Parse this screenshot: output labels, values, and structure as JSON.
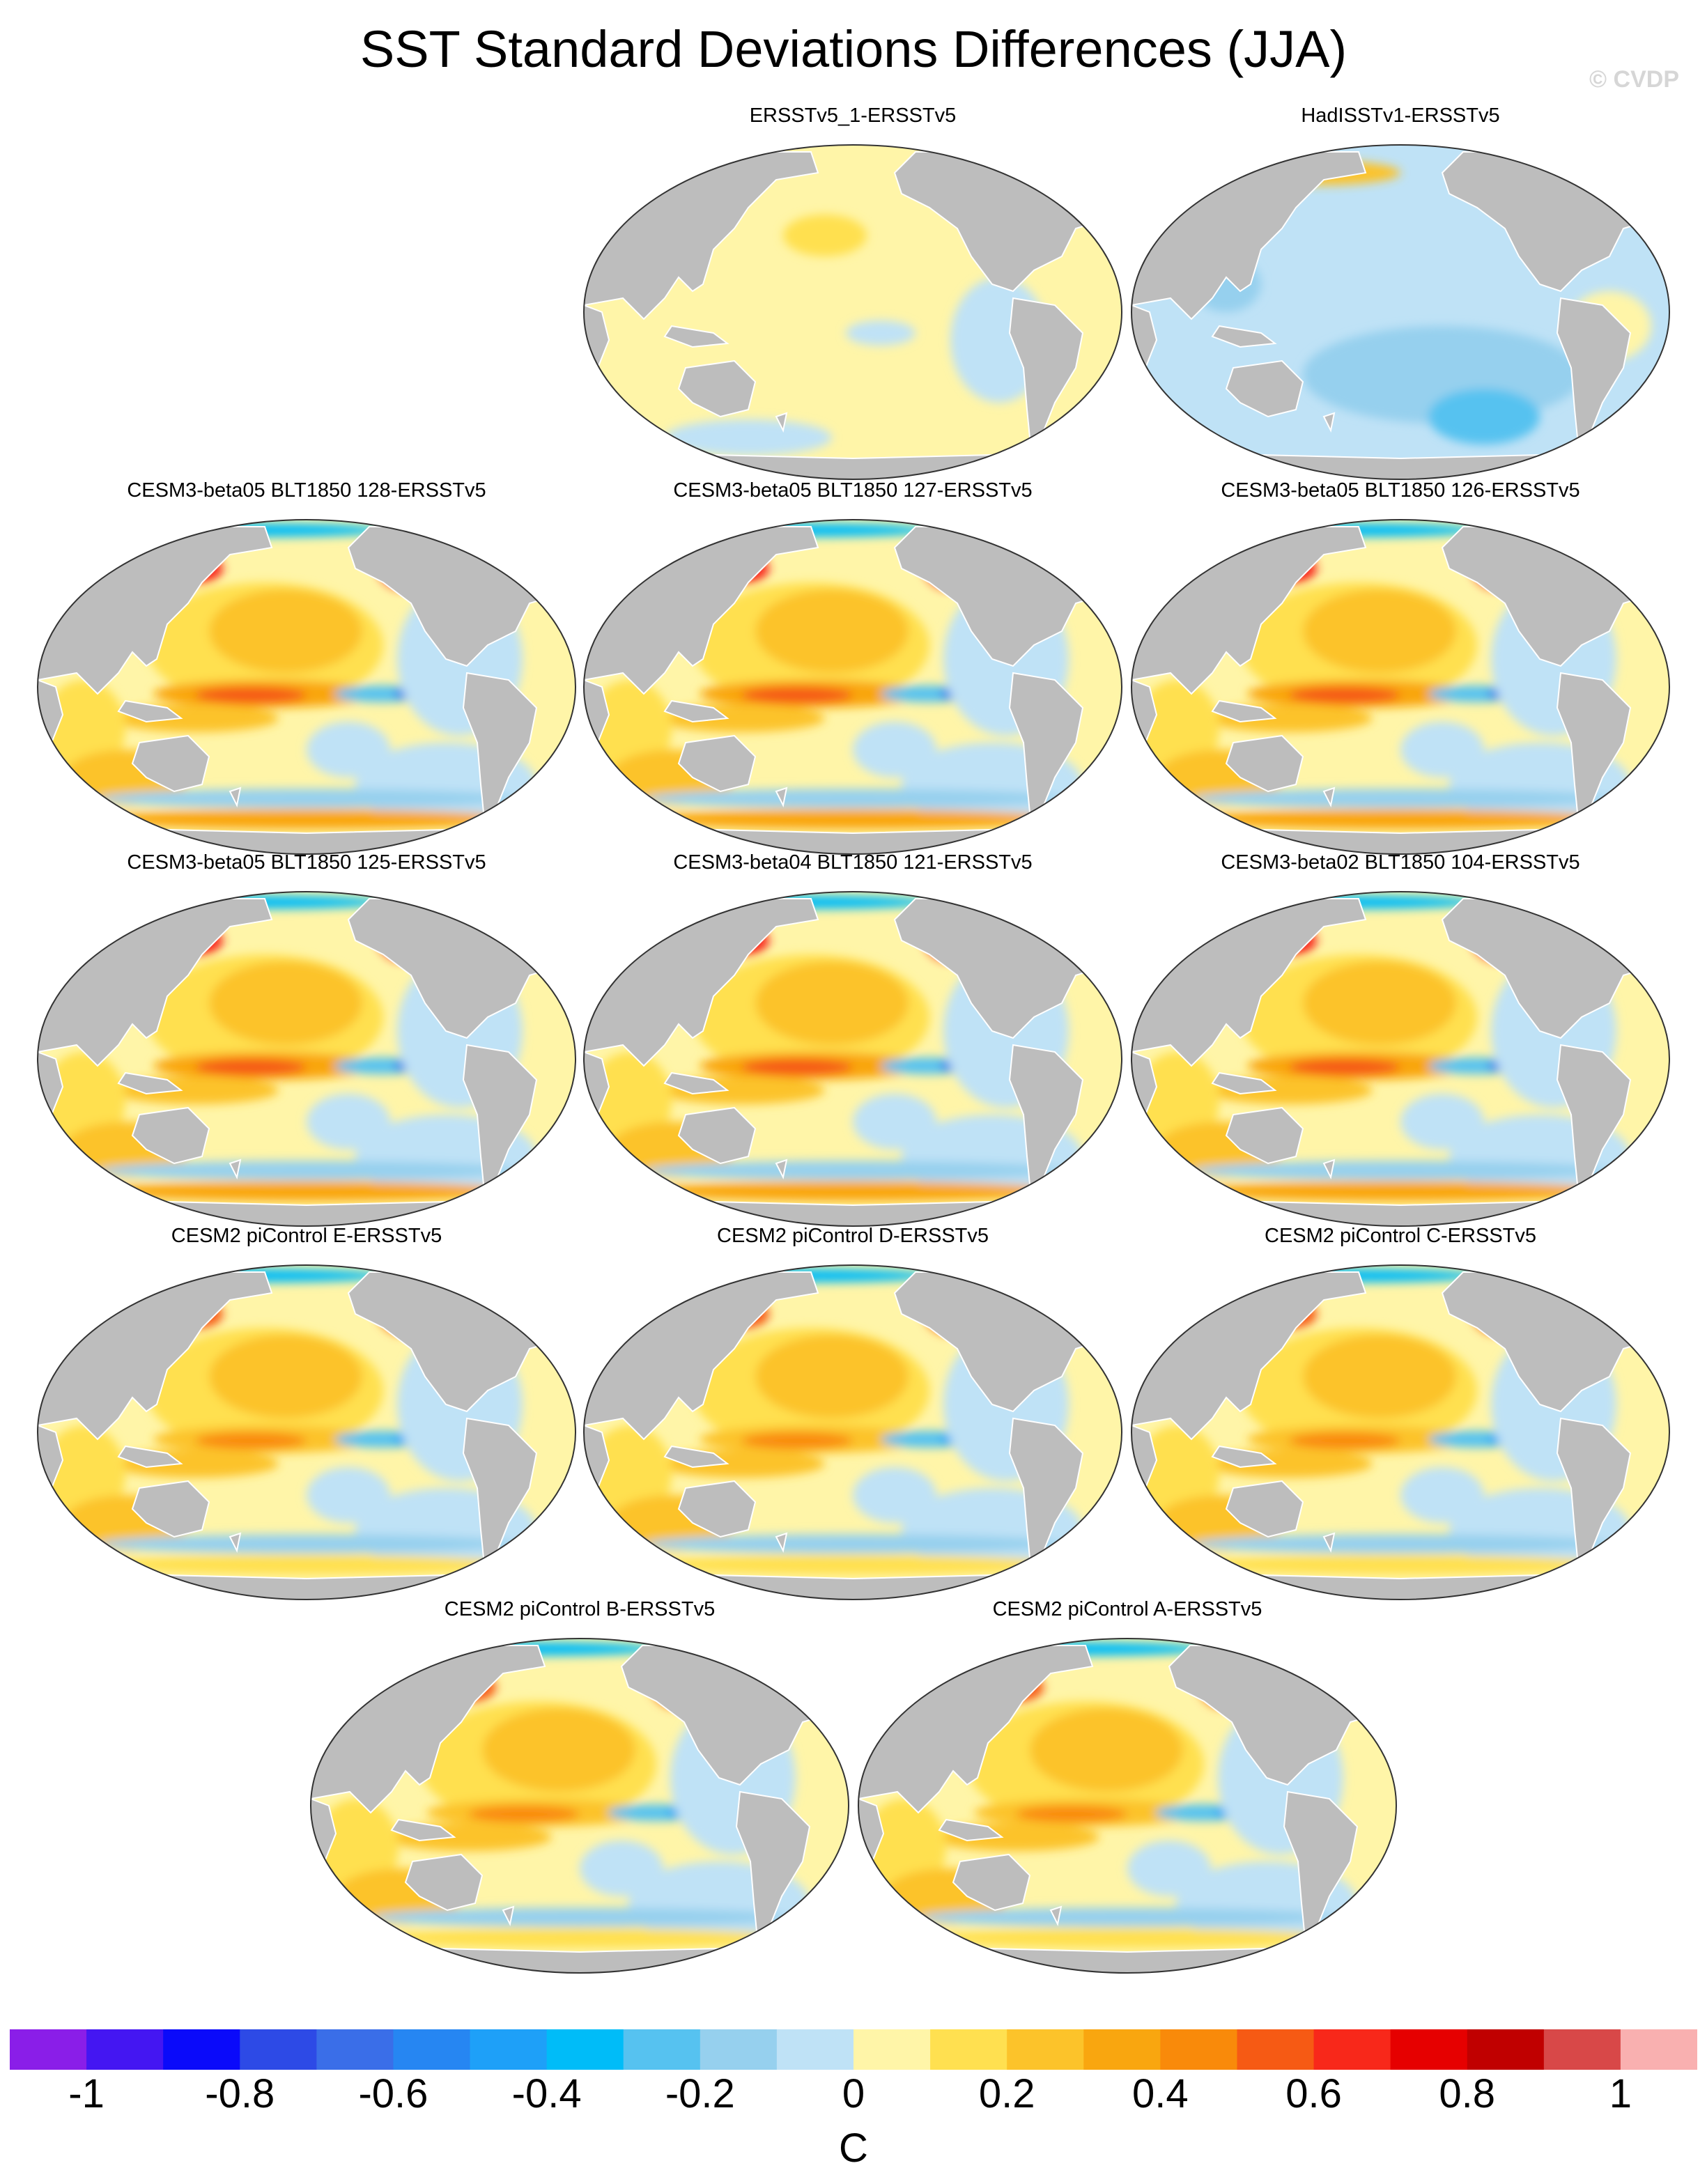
{
  "title": "SST Standard Deviations Differences (JJA)",
  "watermark": "© CVDP",
  "panels": [
    {
      "label": "ERSSTv5_1-ERSSTv5",
      "tone": "weak-positive"
    },
    {
      "label": "HadISSTv1-ERSSTv5",
      "tone": "weak-negative"
    },
    {
      "label": "CESM3-beta05 BLT1850 128-ERSSTv5",
      "tone": "strong"
    },
    {
      "label": "CESM3-beta05 BLT1850 127-ERSSTv5",
      "tone": "strong"
    },
    {
      "label": "CESM3-beta05 BLT1850 126-ERSSTv5",
      "tone": "strong"
    },
    {
      "label": "CESM3-beta05 BLT1850 125-ERSSTv5",
      "tone": "strong"
    },
    {
      "label": "CESM3-beta04 BLT1850 121-ERSSTv5",
      "tone": "strong"
    },
    {
      "label": "CESM3-beta02 BLT1850 104-ERSSTv5",
      "tone": "strong"
    },
    {
      "label": "CESM2 piControl E-ERSSTv5",
      "tone": "moderate"
    },
    {
      "label": "CESM2 piControl D-ERSSTv5",
      "tone": "moderate"
    },
    {
      "label": "CESM2 piControl C-ERSSTv5",
      "tone": "moderate"
    },
    {
      "label": "CESM2 piControl B-ERSSTv5",
      "tone": "moderate"
    },
    {
      "label": "CESM2 piControl A-ERSSTv5",
      "tone": "moderate"
    }
  ],
  "colorbar": {
    "unit": "C",
    "tick_labels": [
      "-1",
      "-0.8",
      "-0.6",
      "-0.4",
      "-0.2",
      "0",
      "0.2",
      "0.4",
      "0.6",
      "0.8",
      "1"
    ],
    "tick_values": [
      -1,
      -0.8,
      -0.6,
      -0.4,
      -0.2,
      0,
      0.2,
      0.4,
      0.6,
      0.8,
      1
    ],
    "colors": [
      "#8a1ee8",
      "#4416f2",
      "#0a0afa",
      "#2d4ae6",
      "#3a6ee8",
      "#2686f2",
      "#1ea0f8",
      "#00bcf8",
      "#56c2f0",
      "#96d0ee",
      "#bfe2f6",
      "#fff5a8",
      "#ffe050",
      "#fcc32a",
      "#f9a60f",
      "#f98a0a",
      "#f65a14",
      "#f8281a",
      "#e60000",
      "#c00000",
      "#d84848",
      "#f9b0b0"
    ]
  },
  "colors": {
    "land": "#bdbdbd",
    "coast": "#ffffff",
    "ocean_border": "#333333"
  }
}
